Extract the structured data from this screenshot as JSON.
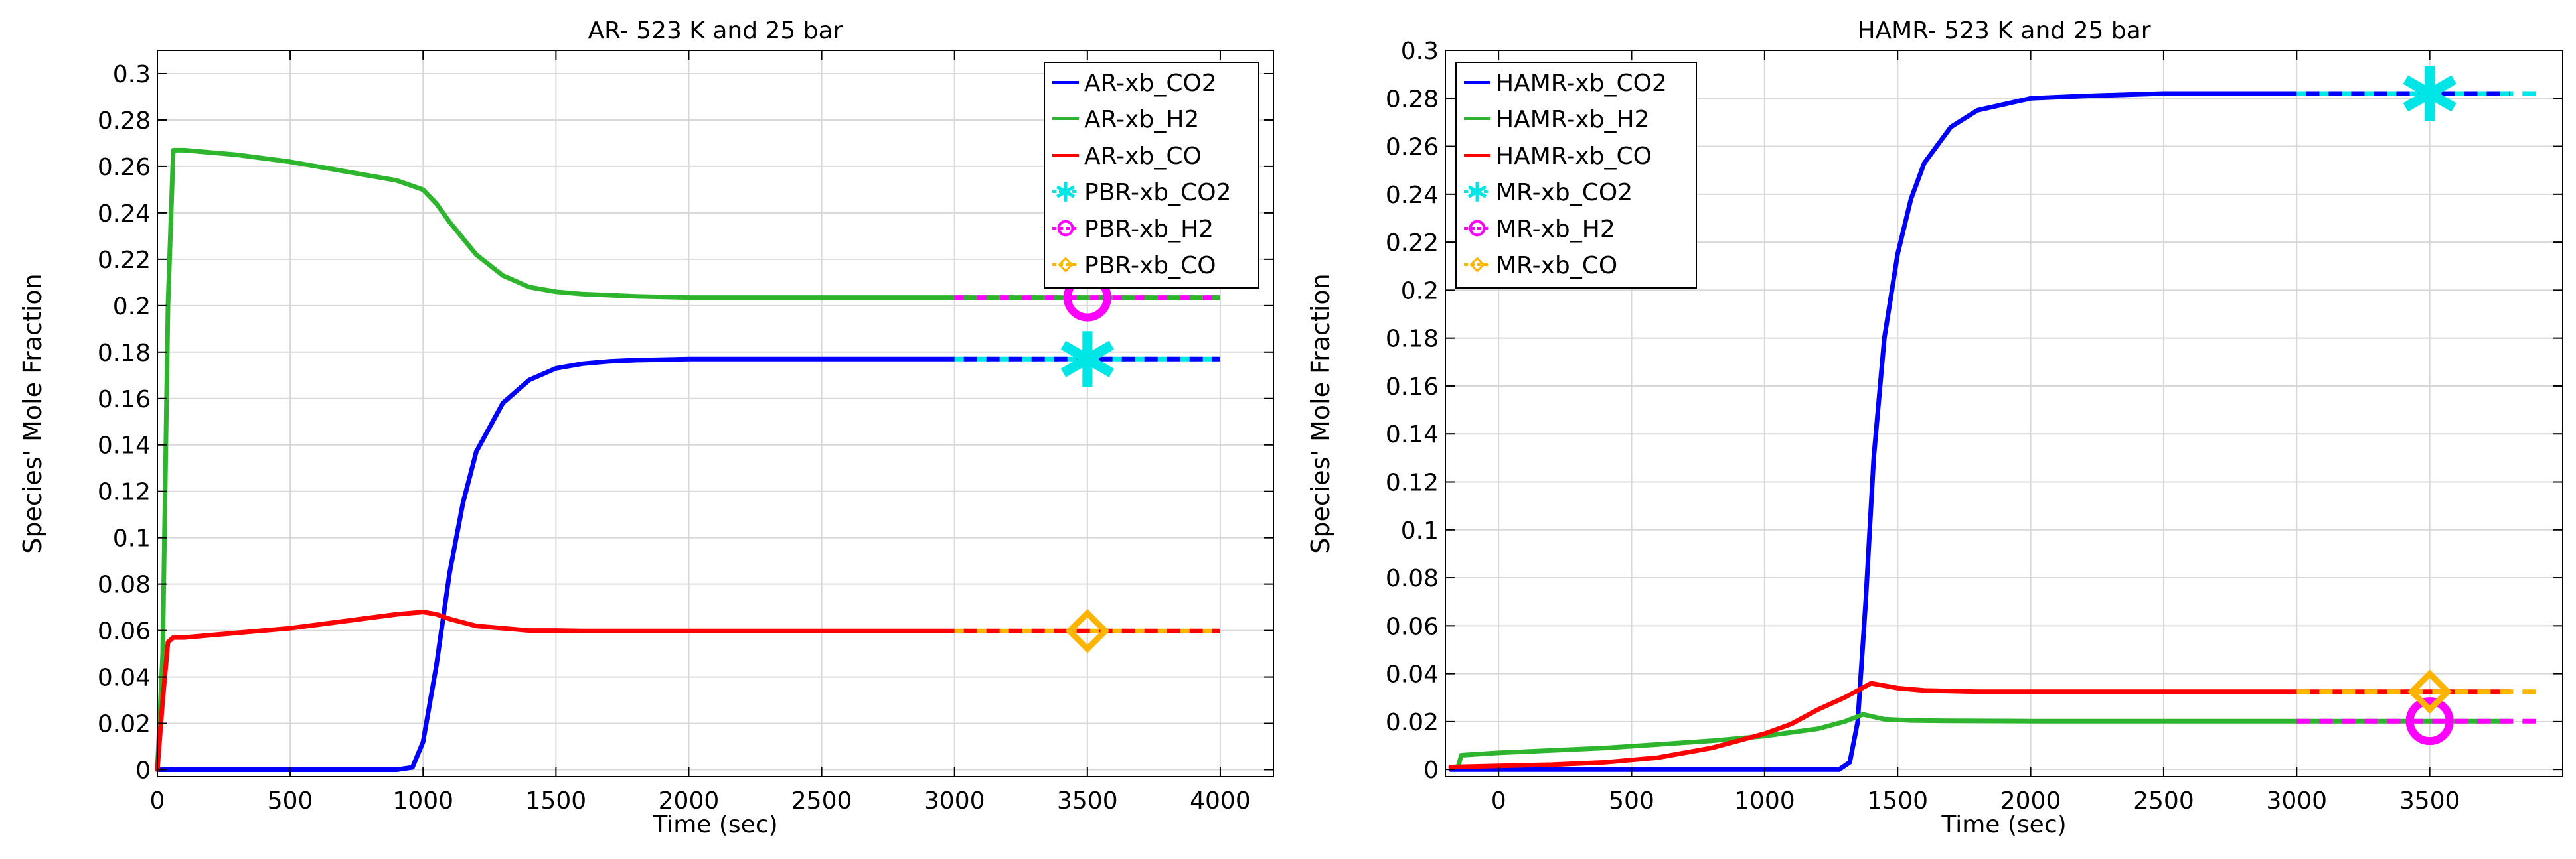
{
  "colors": {
    "blue": "#0000ff",
    "green": "#2db52d",
    "red": "#ff0000",
    "cyan": "#00e5e5",
    "magenta": "#ff00ff",
    "orange": "#ffb400",
    "grid": "#d8d8d8",
    "axis": "#000000"
  },
  "chart_data": [
    {
      "type": "line",
      "title": "AR- 523 K and 25 bar",
      "xlabel": "Time (sec)",
      "ylabel": "Species' Mole Fraction",
      "xlim": [
        0,
        4200
      ],
      "ylim": [
        -0.003,
        0.31
      ],
      "xticks": [
        0,
        500,
        1000,
        1500,
        2000,
        2500,
        3000,
        3500,
        4000
      ],
      "xtick_labels": [
        "0",
        "500",
        "1000",
        "1500",
        "2000",
        "2500",
        "3000",
        "3500",
        "4000"
      ],
      "yticks": [
        0,
        0.02,
        0.04,
        0.06,
        0.08,
        0.1,
        0.12,
        0.14,
        0.16,
        0.18,
        0.2,
        0.22,
        0.24,
        0.26,
        0.28,
        0.3
      ],
      "ytick_labels": [
        "0",
        "0.02",
        "0.04",
        "0.06",
        "0.08",
        "0.1",
        "0.12",
        "0.14",
        "0.16",
        "0.18",
        "0.2",
        "0.22",
        "0.24",
        "0.26",
        "0.28",
        "0.3"
      ],
      "grid": true,
      "legend_position": "top-right",
      "series": [
        {
          "name": "AR-xb_CO2",
          "color": "blue",
          "style": "solid",
          "x": [
            0,
            900,
            960,
            1000,
            1050,
            1100,
            1150,
            1200,
            1300,
            1400,
            1500,
            1600,
            1700,
            1800,
            2000,
            2200,
            2500,
            3000
          ],
          "y": [
            0,
            0,
            0.001,
            0.012,
            0.045,
            0.085,
            0.115,
            0.137,
            0.158,
            0.168,
            0.173,
            0.175,
            0.176,
            0.1765,
            0.177,
            0.177,
            0.177,
            0.177
          ]
        },
        {
          "name": "AR-xb_H2",
          "color": "green",
          "style": "solid",
          "x": [
            0,
            20,
            40,
            60,
            100,
            300,
            500,
            700,
            900,
            1000,
            1050,
            1100,
            1200,
            1300,
            1400,
            1500,
            1600,
            1800,
            2000,
            2500,
            3000
          ],
          "y": [
            0,
            0.05,
            0.2,
            0.267,
            0.267,
            0.265,
            0.262,
            0.258,
            0.254,
            0.25,
            0.244,
            0.236,
            0.222,
            0.213,
            0.208,
            0.206,
            0.205,
            0.204,
            0.2035,
            0.2035,
            0.2035
          ]
        },
        {
          "name": "AR-xb_CO",
          "color": "red",
          "style": "solid",
          "x": [
            0,
            20,
            40,
            60,
            100,
            300,
            500,
            700,
            900,
            1000,
            1050,
            1100,
            1200,
            1300,
            1400,
            1500,
            1600,
            2000,
            2500,
            3000
          ],
          "y": [
            0,
            0.03,
            0.055,
            0.057,
            0.057,
            0.059,
            0.061,
            0.064,
            0.067,
            0.068,
            0.067,
            0.065,
            0.062,
            0.061,
            0.06,
            0.06,
            0.0598,
            0.0598,
            0.0598,
            0.0598
          ]
        },
        {
          "name": "PBR-xb_CO2",
          "color": "cyan",
          "style": "dashed",
          "marker": "asterisk",
          "x": [
            3000,
            4000
          ],
          "y": [
            0.177,
            0.177
          ],
          "marker_x": 3500,
          "marker_y": 0.177
        },
        {
          "name": "PBR-xb_H2",
          "color": "magenta",
          "style": "dashed",
          "marker": "circle",
          "x": [
            3000,
            4000
          ],
          "y": [
            0.2035,
            0.2035
          ],
          "marker_x": 3500,
          "marker_y": 0.2035
        },
        {
          "name": "PBR-xb_CO",
          "color": "orange",
          "style": "dashed",
          "marker": "diamond",
          "x": [
            3000,
            4000
          ],
          "y": [
            0.0598,
            0.0598
          ],
          "marker_x": 3500,
          "marker_y": 0.0598
        }
      ],
      "overlays": [
        {
          "color": "blue",
          "x": [
            3000,
            4000
          ],
          "y": [
            0.177,
            0.177
          ]
        },
        {
          "color": "green",
          "x": [
            3000,
            4000
          ],
          "y": [
            0.2035,
            0.2035
          ]
        },
        {
          "color": "red",
          "x": [
            3000,
            4000
          ],
          "y": [
            0.0598,
            0.0598
          ]
        }
      ]
    },
    {
      "type": "line",
      "title": "HAMR- 523 K and 25 bar",
      "xlabel": "Time (sec)",
      "ylabel": "Species' Mole Fraction",
      "xlim": [
        -200,
        4000
      ],
      "ylim": [
        -0.003,
        0.3
      ],
      "xticks": [
        0,
        500,
        1000,
        1500,
        2000,
        2500,
        3000,
        3500
      ],
      "xtick_labels": [
        "0",
        "500",
        "1000",
        "1500",
        "2000",
        "2500",
        "3000",
        "3500"
      ],
      "yticks": [
        0,
        0.02,
        0.04,
        0.06,
        0.08,
        0.1,
        0.12,
        0.14,
        0.16,
        0.18,
        0.2,
        0.22,
        0.24,
        0.26,
        0.28,
        0.3
      ],
      "ytick_labels": [
        "0",
        "0.02",
        "0.04",
        "0.06",
        "0.08",
        "0.1",
        "0.12",
        "0.14",
        "0.16",
        "0.18",
        "0.2",
        "0.22",
        "0.24",
        "0.26",
        "0.28",
        "0.3"
      ],
      "grid": true,
      "legend_position": "top-left",
      "series": [
        {
          "name": "HAMR-xb_CO2",
          "color": "blue",
          "style": "solid",
          "x": [
            -180,
            1280,
            1320,
            1350,
            1380,
            1410,
            1450,
            1500,
            1550,
            1600,
            1700,
            1800,
            2000,
            2200,
            2500,
            3000,
            3800
          ],
          "y": [
            0,
            0,
            0.003,
            0.02,
            0.07,
            0.13,
            0.18,
            0.215,
            0.238,
            0.253,
            0.268,
            0.275,
            0.28,
            0.281,
            0.282,
            0.282,
            0.282
          ]
        },
        {
          "name": "HAMR-xb_H2",
          "color": "green",
          "style": "solid",
          "x": [
            -150,
            -140,
            0,
            200,
            400,
            600,
            800,
            1000,
            1100,
            1200,
            1300,
            1370,
            1450,
            1550,
            1700,
            2000,
            2500,
            3000,
            3800
          ],
          "y": [
            0.002,
            0.006,
            0.007,
            0.008,
            0.009,
            0.0105,
            0.012,
            0.014,
            0.0155,
            0.017,
            0.02,
            0.023,
            0.021,
            0.0205,
            0.0203,
            0.0202,
            0.0202,
            0.0202,
            0.0202
          ]
        },
        {
          "name": "HAMR-xb_CO",
          "color": "red",
          "style": "solid",
          "x": [
            -180,
            0,
            200,
            400,
            600,
            800,
            1000,
            1100,
            1200,
            1300,
            1400,
            1500,
            1600,
            1800,
            2000,
            2500,
            3000,
            3800
          ],
          "y": [
            0.001,
            0.0015,
            0.002,
            0.003,
            0.005,
            0.009,
            0.015,
            0.019,
            0.025,
            0.03,
            0.036,
            0.034,
            0.033,
            0.0325,
            0.0325,
            0.0325,
            0.0325,
            0.0325
          ]
        },
        {
          "name": "MR-xb_CO2",
          "color": "cyan",
          "style": "dashed",
          "marker": "asterisk",
          "x": [
            3000,
            3900
          ],
          "y": [
            0.282,
            0.282
          ],
          "marker_x": 3500,
          "marker_y": 0.282
        },
        {
          "name": "MR-xb_H2",
          "color": "magenta",
          "style": "dashed",
          "marker": "circle",
          "x": [
            3000,
            3900
          ],
          "y": [
            0.0202,
            0.0202
          ],
          "marker_x": 3500,
          "marker_y": 0.0202
        },
        {
          "name": "MR-xb_CO",
          "color": "orange",
          "style": "dashed",
          "marker": "diamond",
          "x": [
            3000,
            3900
          ],
          "y": [
            0.0325,
            0.0325
          ],
          "marker_x": 3500,
          "marker_y": 0.0325
        }
      ],
      "overlays": [
        {
          "color": "blue",
          "x": [
            3000,
            3800
          ],
          "y": [
            0.282,
            0.282
          ]
        }
      ]
    }
  ]
}
